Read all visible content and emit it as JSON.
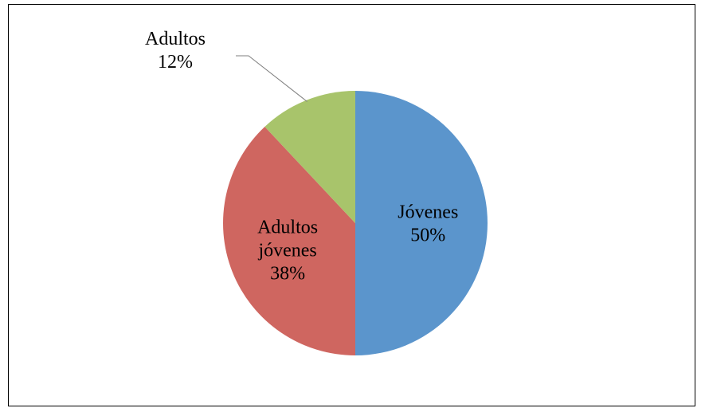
{
  "chart_data": {
    "type": "pie",
    "title": "",
    "categories": [
      "Jóvenes",
      "Adultos jóvenes",
      "Adultos"
    ],
    "values": [
      50,
      38,
      12
    ],
    "unit": "%",
    "slices": [
      {
        "name": "Jóvenes",
        "label_lines": [
          "Jóvenes"
        ],
        "percent_label": "50%",
        "value": 50,
        "color": "#5B95CC"
      },
      {
        "name": "Adultos jóvenes",
        "label_lines": [
          "Adultos",
          "jóvenes"
        ],
        "percent_label": "38%",
        "value": 38,
        "color": "#CF6660"
      },
      {
        "name": "Adultos",
        "label_lines": [
          "Adultos"
        ],
        "percent_label": "12%",
        "value": 12,
        "color": "#A8C46B",
        "label_outside": true
      }
    ],
    "legend": "none",
    "start_angle": "12 o'clock, clockwise"
  }
}
